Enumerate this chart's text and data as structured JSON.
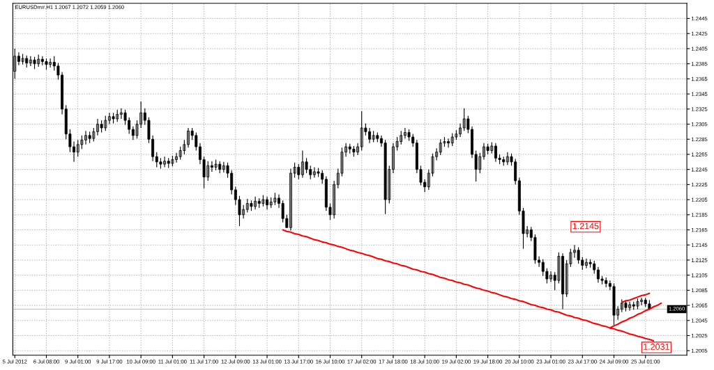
{
  "chart_data": {
    "type": "candlestick",
    "title": "EURUSDm#.H1 1.2067 1.2072 1.2059 1.2060",
    "color": "#000000",
    "categories": [
      "5 Jul 2012",
      null,
      null,
      null,
      null,
      null,
      null,
      null,
      "6 Jul 08:00",
      null,
      null,
      null,
      null,
      null,
      null,
      null,
      "9 Jul 01:00",
      null,
      null,
      null,
      null,
      null,
      null,
      null,
      "9 Jul 17:00",
      null,
      null,
      null,
      null,
      null,
      null,
      null,
      "10 Jul 09:00",
      null,
      null,
      null,
      null,
      null,
      null,
      null,
      "11 Jul 01:00",
      null,
      null,
      null,
      null,
      null,
      null,
      null,
      "11 Jul 17:00",
      null,
      null,
      null,
      null,
      null,
      null,
      null,
      "12 Jul 09:00",
      null,
      null,
      null,
      null,
      null,
      null,
      null,
      "13 Jul 01:00",
      null,
      null,
      null,
      null,
      null,
      null,
      null,
      "13 Jul 17:00",
      null,
      null,
      null,
      null,
      null,
      null,
      null,
      "16 Jul 10:00",
      null,
      null,
      null,
      null,
      null,
      null,
      null,
      "17 Jul 02:00",
      null,
      null,
      null,
      null,
      null,
      null,
      null,
      "17 Jul 18:00",
      null,
      null,
      null,
      null,
      null,
      null,
      null,
      "18 Jul 10:00",
      null,
      null,
      null,
      null,
      null,
      null,
      null,
      "19 Jul 02:00",
      null,
      null,
      null,
      null,
      null,
      null,
      null,
      "19 Jul 18:00",
      null,
      null,
      null,
      null,
      null,
      null,
      null,
      "20 Jul 10:00",
      null,
      null,
      null,
      null,
      null,
      null,
      null,
      "23 Jul 01:00",
      null,
      null,
      null,
      null,
      null,
      null,
      null,
      "23 Jul 17:00",
      null,
      null,
      null,
      null,
      null,
      null,
      null,
      "24 Jul 09:00",
      null,
      null,
      null,
      null,
      null,
      null,
      null,
      "25 Jul 01:00",
      null,
      null,
      null,
      null,
      null,
      null,
      null,
      null,
      null,
      null
    ],
    "ohlc": [
      [
        1.2375,
        1.2405,
        1.2365,
        1.2395
      ],
      [
        1.2395,
        1.24,
        1.2383,
        1.2388
      ],
      [
        1.2388,
        1.2398,
        1.2384,
        1.2392
      ],
      [
        1.2392,
        1.2396,
        1.238,
        1.2386
      ],
      [
        1.2386,
        1.2395,
        1.2382,
        1.239
      ],
      [
        1.239,
        1.2394,
        1.2378,
        1.2385
      ],
      [
        1.2385,
        1.2397,
        1.2381,
        1.2391
      ],
      [
        1.2391,
        1.2395,
        1.2383,
        1.2388
      ],
      [
        1.2388,
        1.2392,
        1.2377,
        1.2384
      ],
      [
        1.2384,
        1.2392,
        1.238,
        1.2387
      ],
      [
        1.2387,
        1.2395,
        1.2376,
        1.2382
      ],
      [
        1.2382,
        1.2386,
        1.2364,
        1.237
      ],
      [
        1.237,
        1.2374,
        1.2318,
        1.2325
      ],
      [
        1.2325,
        1.233,
        1.2285,
        1.2292
      ],
      [
        1.2292,
        1.2298,
        1.2268,
        1.2275
      ],
      [
        1.2275,
        1.2282,
        1.2255,
        1.2268
      ],
      [
        1.2268,
        1.2284,
        1.2262,
        1.2278
      ],
      [
        1.2278,
        1.229,
        1.2272,
        1.2284
      ],
      [
        1.2284,
        1.2296,
        1.2278,
        1.229
      ],
      [
        1.229,
        1.2295,
        1.228,
        1.2286
      ],
      [
        1.2286,
        1.23,
        1.2282,
        1.2295
      ],
      [
        1.2295,
        1.2312,
        1.229,
        1.2305
      ],
      [
        1.2305,
        1.231,
        1.2294,
        1.23
      ],
      [
        1.23,
        1.2316,
        1.2296,
        1.231
      ],
      [
        1.231,
        1.232,
        1.2305,
        1.2315
      ],
      [
        1.2315,
        1.232,
        1.2306,
        1.2312
      ],
      [
        1.2312,
        1.2324,
        1.2308,
        1.2318
      ],
      [
        1.2318,
        1.2326,
        1.2312,
        1.232
      ],
      [
        1.232,
        1.2324,
        1.2304,
        1.231
      ],
      [
        1.231,
        1.2314,
        1.2292,
        1.2298
      ],
      [
        1.2298,
        1.2302,
        1.2284,
        1.229
      ],
      [
        1.229,
        1.231,
        1.2286,
        1.2305
      ],
      [
        1.2305,
        1.2335,
        1.23,
        1.232
      ],
      [
        1.232,
        1.2326,
        1.2304,
        1.231
      ],
      [
        1.231,
        1.2314,
        1.228,
        1.2285
      ],
      [
        1.2285,
        1.229,
        1.2256,
        1.2262
      ],
      [
        1.2262,
        1.2268,
        1.2248,
        1.2255
      ],
      [
        1.2255,
        1.226,
        1.2246,
        1.2252
      ],
      [
        1.2252,
        1.2262,
        1.2248,
        1.2256
      ],
      [
        1.2256,
        1.226,
        1.2247,
        1.2253
      ],
      [
        1.2253,
        1.2263,
        1.2249,
        1.2258
      ],
      [
        1.2258,
        1.2267,
        1.2254,
        1.2262
      ],
      [
        1.2262,
        1.2275,
        1.2258,
        1.227
      ],
      [
        1.227,
        1.2284,
        1.2265,
        1.2278
      ],
      [
        1.2278,
        1.23,
        1.2274,
        1.2296
      ],
      [
        1.2296,
        1.23,
        1.2284,
        1.229
      ],
      [
        1.229,
        1.2294,
        1.227,
        1.2275
      ],
      [
        1.2275,
        1.228,
        1.2252,
        1.2258
      ],
      [
        1.2258,
        1.2262,
        1.222,
        1.2235
      ],
      [
        1.2235,
        1.2256,
        1.223,
        1.225
      ],
      [
        1.225,
        1.2256,
        1.2242,
        1.2248
      ],
      [
        1.2248,
        1.2258,
        1.2244,
        1.2252
      ],
      [
        1.2252,
        1.2256,
        1.224,
        1.2245
      ],
      [
        1.2245,
        1.2255,
        1.2241,
        1.225
      ],
      [
        1.225,
        1.2254,
        1.2234,
        1.224
      ],
      [
        1.224,
        1.2244,
        1.2212,
        1.2218
      ],
      [
        1.2218,
        1.2222,
        1.2198,
        1.2205
      ],
      [
        1.2205,
        1.221,
        1.217,
        1.2185
      ],
      [
        1.2185,
        1.2198,
        1.218,
        1.2192
      ],
      [
        1.2192,
        1.2206,
        1.2188,
        1.22
      ],
      [
        1.22,
        1.2204,
        1.219,
        1.2196
      ],
      [
        1.2196,
        1.2209,
        1.2192,
        1.2203
      ],
      [
        1.2203,
        1.2207,
        1.2194,
        1.22
      ],
      [
        1.22,
        1.2211,
        1.2196,
        1.2205
      ],
      [
        1.2205,
        1.2209,
        1.2192,
        1.2198
      ],
      [
        1.2198,
        1.2208,
        1.2194,
        1.2202
      ],
      [
        1.2202,
        1.2214,
        1.2198,
        1.2207
      ],
      [
        1.2207,
        1.2212,
        1.2194,
        1.22
      ],
      [
        1.22,
        1.2204,
        1.2175,
        1.218
      ],
      [
        1.218,
        1.2185,
        1.2168,
        1.2168
      ],
      [
        1.2168,
        1.2246,
        1.2164,
        1.224
      ],
      [
        1.224,
        1.2254,
        1.2234,
        1.2248
      ],
      [
        1.2248,
        1.2252,
        1.2232,
        1.2238
      ],
      [
        1.2238,
        1.227,
        1.2234,
        1.2255
      ],
      [
        1.2255,
        1.226,
        1.224,
        1.2245
      ],
      [
        1.2245,
        1.225,
        1.2232,
        1.2238
      ],
      [
        1.2238,
        1.2248,
        1.2234,
        1.2242
      ],
      [
        1.2242,
        1.2247,
        1.2235,
        1.224
      ],
      [
        1.224,
        1.2244,
        1.2226,
        1.2232
      ],
      [
        1.2232,
        1.2236,
        1.219,
        1.2195
      ],
      [
        1.2195,
        1.22,
        1.2178,
        1.2185
      ],
      [
        1.2185,
        1.223,
        1.218,
        1.2225
      ],
      [
        1.2225,
        1.2246,
        1.222,
        1.224
      ],
      [
        1.224,
        1.2274,
        1.2236,
        1.2268
      ],
      [
        1.2268,
        1.228,
        1.2262,
        1.2275
      ],
      [
        1.2275,
        1.2279,
        1.2266,
        1.2272
      ],
      [
        1.2272,
        1.2276,
        1.2262,
        1.2268
      ],
      [
        1.2268,
        1.228,
        1.2264,
        1.2275
      ],
      [
        1.2275,
        1.2322,
        1.227,
        1.23
      ],
      [
        1.23,
        1.2306,
        1.229,
        1.2295
      ],
      [
        1.2295,
        1.23,
        1.228,
        1.2285
      ],
      [
        1.2285,
        1.2296,
        1.2281,
        1.229
      ],
      [
        1.229,
        1.2294,
        1.2281,
        1.2286
      ],
      [
        1.2286,
        1.229,
        1.2275,
        1.228
      ],
      [
        1.228,
        1.2284,
        1.2186,
        1.2205
      ],
      [
        1.2205,
        1.225,
        1.22,
        1.2245
      ],
      [
        1.2245,
        1.228,
        1.224,
        1.2275
      ],
      [
        1.2275,
        1.2288,
        1.227,
        1.2282
      ],
      [
        1.2282,
        1.2296,
        1.2278,
        1.229
      ],
      [
        1.229,
        1.23,
        1.2286,
        1.2294
      ],
      [
        1.2294,
        1.2298,
        1.2283,
        1.2288
      ],
      [
        1.2288,
        1.2292,
        1.2275,
        1.228
      ],
      [
        1.228,
        1.2284,
        1.224,
        1.2245
      ],
      [
        1.2245,
        1.225,
        1.2224,
        1.2228
      ],
      [
        1.2228,
        1.2232,
        1.2215,
        1.2222
      ],
      [
        1.2222,
        1.2245,
        1.2218,
        1.224
      ],
      [
        1.224,
        1.2266,
        1.2236,
        1.2262
      ],
      [
        1.2262,
        1.2273,
        1.2257,
        1.2268
      ],
      [
        1.2268,
        1.2285,
        1.2264,
        1.228
      ],
      [
        1.228,
        1.2288,
        1.2275,
        1.2282
      ],
      [
        1.2282,
        1.2286,
        1.2274,
        1.228
      ],
      [
        1.228,
        1.2293,
        1.2276,
        1.2288
      ],
      [
        1.2288,
        1.2297,
        1.2284,
        1.2292
      ],
      [
        1.2292,
        1.2306,
        1.2288,
        1.23
      ],
      [
        1.23,
        1.2326,
        1.2296,
        1.2312
      ],
      [
        1.2312,
        1.2316,
        1.2293,
        1.2298
      ],
      [
        1.2298,
        1.2302,
        1.226,
        1.2265
      ],
      [
        1.2265,
        1.227,
        1.2229,
        1.2245
      ],
      [
        1.2245,
        1.2267,
        1.224,
        1.2262
      ],
      [
        1.2262,
        1.228,
        1.2258,
        1.2275
      ],
      [
        1.2275,
        1.2279,
        1.2265,
        1.227
      ],
      [
        1.227,
        1.2281,
        1.2266,
        1.2276
      ],
      [
        1.2276,
        1.228,
        1.2255,
        1.226
      ],
      [
        1.226,
        1.2265,
        1.2252,
        1.2258
      ],
      [
        1.2258,
        1.2262,
        1.225,
        1.2255
      ],
      [
        1.2255,
        1.2268,
        1.2251,
        1.2262
      ],
      [
        1.2262,
        1.2266,
        1.225,
        1.2255
      ],
      [
        1.2255,
        1.2259,
        1.2225,
        1.223
      ],
      [
        1.223,
        1.2234,
        1.2185,
        1.219
      ],
      [
        1.219,
        1.2194,
        1.214,
        1.216
      ],
      [
        1.216,
        1.217,
        1.2155,
        1.2165
      ],
      [
        1.2165,
        1.2169,
        1.215,
        1.2155
      ],
      [
        1.2155,
        1.2159,
        1.212,
        1.2125
      ],
      [
        1.2125,
        1.213,
        1.2116,
        1.2122
      ],
      [
        1.2122,
        1.2126,
        1.2104,
        1.211
      ],
      [
        1.211,
        1.2114,
        1.2094,
        1.21
      ],
      [
        1.21,
        1.211,
        1.2096,
        1.2105
      ],
      [
        1.2105,
        1.2109,
        1.2085,
        1.2098
      ],
      [
        1.2098,
        1.2135,
        1.2094,
        1.213
      ],
      [
        1.213,
        1.2134,
        1.206,
        1.208
      ],
      [
        1.208,
        1.2125,
        1.2076,
        1.212
      ],
      [
        1.212,
        1.214,
        1.2116,
        1.2135
      ],
      [
        1.2135,
        1.2145,
        1.2128,
        1.2138
      ],
      [
        1.2138,
        1.2142,
        1.212,
        1.2125
      ],
      [
        1.2125,
        1.2129,
        1.2112,
        1.2118
      ],
      [
        1.2118,
        1.2127,
        1.2114,
        1.2122
      ],
      [
        1.2122,
        1.2126,
        1.2115,
        1.212
      ],
      [
        1.212,
        1.2124,
        1.2107,
        1.2112
      ],
      [
        1.2112,
        1.2116,
        1.2095,
        1.21
      ],
      [
        1.21,
        1.2104,
        1.2093,
        1.2098
      ],
      [
        1.2098,
        1.2102,
        1.2089,
        1.2094
      ],
      [
        1.2094,
        1.2098,
        1.2085,
        1.209
      ],
      [
        1.209,
        1.2094,
        1.2039,
        1.2052
      ],
      [
        1.2052,
        1.2064,
        1.2046,
        1.206
      ],
      [
        1.206,
        1.2073,
        1.2056,
        1.2068
      ],
      [
        1.2068,
        1.2072,
        1.2057,
        1.2062
      ],
      [
        1.2062,
        1.207,
        1.2058,
        1.2066
      ],
      [
        1.2066,
        1.207,
        1.2059,
        1.2064
      ],
      [
        1.2064,
        1.2074,
        1.206,
        1.207
      ],
      [
        1.207,
        1.2075,
        1.2065,
        1.2072
      ],
      [
        1.2072,
        1.2075,
        1.2063,
        1.2067
      ],
      [
        1.2067,
        1.2072,
        1.2059,
        1.206
      ],
      null,
      null,
      null,
      null,
      null,
      null,
      null,
      null,
      null
    ],
    "series": [
      {
        "type": "line",
        "color": "#ff0000",
        "values": [
          null,
          null,
          null,
          null,
          null,
          null,
          null,
          null,
          null,
          null,
          null,
          null,
          null,
          null,
          null,
          null,
          null,
          null,
          null,
          null,
          null,
          null,
          null,
          null,
          null,
          null,
          null,
          null,
          null,
          null,
          null,
          null,
          null,
          null,
          null,
          null,
          null,
          null,
          null,
          null,
          null,
          null,
          null,
          null,
          null,
          null,
          null,
          null,
          null,
          null,
          null,
          null,
          null,
          null,
          null,
          null,
          null,
          null,
          null,
          null,
          null,
          null,
          null,
          null,
          null,
          null,
          null,
          null,
          1.2165,
          1.2163,
          1.2162,
          1.216,
          1.2159,
          1.2157,
          1.2156,
          1.2154,
          1.2152,
          1.2151,
          1.2149,
          1.2148,
          1.2146,
          1.2145,
          1.2143,
          1.2142,
          1.214,
          1.2138,
          1.2137,
          1.2135,
          1.2134,
          1.2132,
          1.2131,
          1.2129,
          1.2127,
          1.2126,
          1.2124,
          1.2123,
          1.2121,
          1.212,
          1.2118,
          1.2117,
          1.2115,
          1.2113,
          1.2112,
          1.211,
          1.2109,
          1.2107,
          1.2106,
          1.2104,
          1.2102,
          1.2101,
          1.2099,
          1.2098,
          1.2096,
          1.2095,
          1.2093,
          1.2092,
          1.209,
          1.2088,
          1.2087,
          1.2085,
          1.2084,
          1.2082,
          1.2081,
          1.2079,
          1.2077,
          1.2076,
          1.2074,
          1.2073,
          1.2071,
          1.207,
          1.2068,
          1.2066,
          1.2065,
          1.2063,
          1.2062,
          1.206,
          1.2059,
          1.2057,
          1.2056,
          1.2054,
          1.2052,
          1.2051,
          1.2049,
          1.2048,
          1.2046,
          1.2045,
          1.2043,
          1.2041,
          1.204,
          1.2038,
          1.2037,
          1.2035,
          1.2034,
          1.2032,
          1.2031,
          1.2029,
          1.2027,
          1.2026,
          1.2024,
          1.2023,
          1.2021,
          1.202,
          1.2018,
          null,
          null,
          null,
          null,
          null,
          null,
          null,
          null
        ]
      },
      {
        "type": "line",
        "color": "#ff0000",
        "values": [
          null,
          null,
          null,
          null,
          null,
          null,
          null,
          null,
          null,
          null,
          null,
          null,
          null,
          null,
          null,
          null,
          null,
          null,
          null,
          null,
          null,
          null,
          null,
          null,
          null,
          null,
          null,
          null,
          null,
          null,
          null,
          null,
          null,
          null,
          null,
          null,
          null,
          null,
          null,
          null,
          null,
          null,
          null,
          null,
          null,
          null,
          null,
          null,
          null,
          null,
          null,
          null,
          null,
          null,
          null,
          null,
          null,
          null,
          null,
          null,
          null,
          null,
          null,
          null,
          null,
          null,
          null,
          null,
          null,
          null,
          null,
          null,
          null,
          null,
          null,
          null,
          null,
          null,
          null,
          null,
          null,
          null,
          null,
          null,
          null,
          null,
          null,
          null,
          null,
          null,
          null,
          null,
          null,
          null,
          null,
          null,
          null,
          null,
          null,
          null,
          null,
          null,
          null,
          null,
          null,
          null,
          null,
          null,
          null,
          null,
          null,
          null,
          null,
          null,
          null,
          null,
          null,
          null,
          null,
          null,
          null,
          null,
          null,
          null,
          null,
          null,
          null,
          null,
          null,
          null,
          null,
          null,
          null,
          null,
          null,
          null,
          null,
          null,
          null,
          null,
          null,
          null,
          null,
          null,
          null,
          null,
          null,
          null,
          null,
          null,
          null,
          1.2035,
          1.2038,
          1.204,
          1.2043,
          1.2045,
          1.2048,
          1.205,
          1.2053,
          1.2055,
          1.2058,
          1.206,
          1.2063,
          1.2065,
          1.2068,
          null,
          null,
          null,
          null,
          null,
          null
        ]
      },
      {
        "type": "line",
        "color": "#ff0000",
        "values": [
          null,
          null,
          null,
          null,
          null,
          null,
          null,
          null,
          null,
          null,
          null,
          null,
          null,
          null,
          null,
          null,
          null,
          null,
          null,
          null,
          null,
          null,
          null,
          null,
          null,
          null,
          null,
          null,
          null,
          null,
          null,
          null,
          null,
          null,
          null,
          null,
          null,
          null,
          null,
          null,
          null,
          null,
          null,
          null,
          null,
          null,
          null,
          null,
          null,
          null,
          null,
          null,
          null,
          null,
          null,
          null,
          null,
          null,
          null,
          null,
          null,
          null,
          null,
          null,
          null,
          null,
          null,
          null,
          null,
          null,
          null,
          null,
          null,
          null,
          null,
          null,
          null,
          null,
          null,
          null,
          null,
          null,
          null,
          null,
          null,
          null,
          null,
          null,
          null,
          null,
          null,
          null,
          null,
          null,
          null,
          null,
          null,
          null,
          null,
          null,
          null,
          null,
          null,
          null,
          null,
          null,
          null,
          null,
          null,
          null,
          null,
          null,
          null,
          null,
          null,
          null,
          null,
          null,
          null,
          null,
          null,
          null,
          null,
          null,
          null,
          null,
          null,
          null,
          null,
          null,
          null,
          null,
          null,
          null,
          null,
          null,
          null,
          null,
          null,
          null,
          null,
          null,
          null,
          null,
          null,
          null,
          null,
          null,
          null,
          null,
          null,
          null,
          null,
          null,
          1.2069,
          1.2071,
          1.2072,
          1.2074,
          1.2076,
          1.2078,
          1.2079,
          1.2081,
          null,
          null,
          null,
          null,
          null,
          null,
          null,
          null,
          null
        ]
      }
    ],
    "annotations": [
      "1.2145",
      "1.2031"
    ],
    "ref_lines": [
      {
        "axis": "y",
        "value": 1.206,
        "label": "1.2060",
        "color": "#c0c0c0"
      }
    ],
    "ylim": [
      1.1999,
      1.2465
    ],
    "yticks": [
      1.2005,
      1.2025,
      1.2045,
      1.2065,
      1.2085,
      1.2105,
      1.2125,
      1.2145,
      1.2165,
      1.2185,
      1.2205,
      1.2225,
      1.2245,
      1.2265,
      1.2285,
      1.2305,
      1.2325,
      1.2345,
      1.2365,
      1.2385,
      1.2405,
      1.2425,
      1.2445
    ],
    "grid": true
  }
}
